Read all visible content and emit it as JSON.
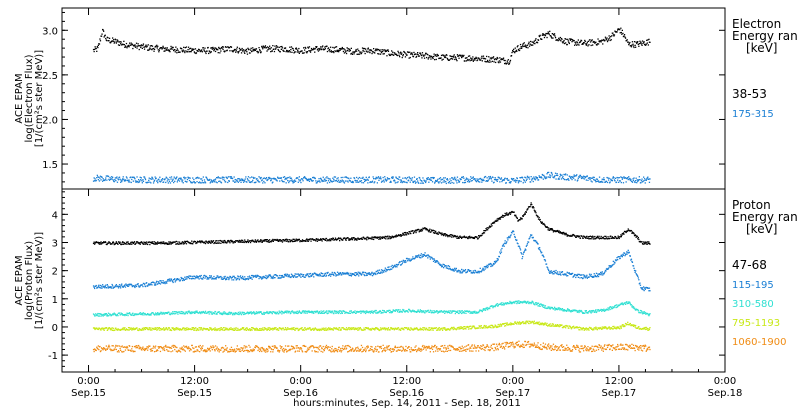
{
  "chart_data": [
    {
      "type": "scatter",
      "panel": "electron",
      "ylabel_lines": [
        "ACE EPAM",
        "log(Electron Flux)",
        "[1/(cm²s ster MeV)]"
      ],
      "ylim": [
        1.22,
        3.25
      ],
      "yticks": [
        1.5,
        2.0,
        2.5,
        3.0
      ],
      "ytick_labels": [
        "1.5",
        "2.0",
        "2.5",
        "3.0"
      ],
      "legend_title": [
        "Electron",
        "Energy ran",
        "[keV]"
      ],
      "series": [
        {
          "name": "38-53",
          "color": "#000000",
          "jitter": 0.035,
          "points": [
            [
              0.5,
              2.78
            ],
            [
              1,
              2.8
            ],
            [
              1.5,
              3.0
            ],
            [
              2,
              2.9
            ],
            [
              3,
              2.88
            ],
            [
              4,
              2.85
            ],
            [
              6,
              2.82
            ],
            [
              8,
              2.8
            ],
            [
              10,
              2.79
            ],
            [
              12,
              2.78
            ],
            [
              14,
              2.78
            ],
            [
              16,
              2.8
            ],
            [
              18,
              2.77
            ],
            [
              20,
              2.8
            ],
            [
              22,
              2.8
            ],
            [
              24,
              2.78
            ],
            [
              26,
              2.8
            ],
            [
              28,
              2.79
            ],
            [
              30,
              2.77
            ],
            [
              32,
              2.78
            ],
            [
              34,
              2.75
            ],
            [
              36,
              2.73
            ],
            [
              38,
              2.72
            ],
            [
              40,
              2.7
            ],
            [
              42,
              2.7
            ],
            [
              44,
              2.69
            ],
            [
              46,
              2.68
            ],
            [
              47.5,
              2.66
            ],
            [
              48,
              2.78
            ],
            [
              49,
              2.83
            ],
            [
              50,
              2.85
            ],
            [
              51,
              2.92
            ],
            [
              52,
              2.97
            ],
            [
              53,
              2.92
            ],
            [
              54,
              2.88
            ],
            [
              56,
              2.86
            ],
            [
              58,
              2.88
            ],
            [
              59,
              2.93
            ],
            [
              60,
              3.02
            ],
            [
              60.5,
              2.95
            ],
            [
              61,
              2.85
            ],
            [
              62,
              2.85
            ],
            [
              63.5,
              2.88
            ]
          ]
        },
        {
          "name": "175-315",
          "color": "#1a7fd4",
          "jitter": 0.035,
          "points": [
            [
              0.5,
              1.35
            ],
            [
              4,
              1.33
            ],
            [
              8,
              1.33
            ],
            [
              12,
              1.33
            ],
            [
              16,
              1.33
            ],
            [
              20,
              1.33
            ],
            [
              24,
              1.33
            ],
            [
              28,
              1.33
            ],
            [
              32,
              1.33
            ],
            [
              36,
              1.33
            ],
            [
              40,
              1.32
            ],
            [
              44,
              1.34
            ],
            [
              46,
              1.33
            ],
            [
              48,
              1.32
            ],
            [
              50,
              1.34
            ],
            [
              52,
              1.38
            ],
            [
              54,
              1.36
            ],
            [
              56,
              1.35
            ],
            [
              58,
              1.33
            ],
            [
              60,
              1.33
            ],
            [
              63.5,
              1.33
            ]
          ]
        }
      ]
    },
    {
      "type": "scatter",
      "panel": "proton",
      "ylabel_lines": [
        "ACE EPAM",
        "log(Proton Flux)",
        "[1/(cm²s ster MeV)]"
      ],
      "ylim": [
        -1.6,
        4.9
      ],
      "yticks": [
        -1,
        0,
        1,
        2,
        3,
        4
      ],
      "ytick_labels": [
        "-1",
        "0",
        "1",
        "2",
        "3",
        "4"
      ],
      "legend_title": [
        "Proton",
        "Energy ran",
        "[keV]"
      ],
      "series": [
        {
          "name": "47-68",
          "color": "#000000",
          "jitter": 0.05,
          "points": [
            [
              0.5,
              3.0
            ],
            [
              8,
              3.0
            ],
            [
              16,
              3.05
            ],
            [
              24,
              3.1
            ],
            [
              30,
              3.15
            ],
            [
              34,
              3.2
            ],
            [
              36,
              3.35
            ],
            [
              38,
              3.5
            ],
            [
              40,
              3.3
            ],
            [
              42,
              3.2
            ],
            [
              44,
              3.2
            ],
            [
              45,
              3.5
            ],
            [
              46,
              3.8
            ],
            [
              47,
              4.0
            ],
            [
              48,
              4.1
            ],
            [
              48.5,
              3.8
            ],
            [
              49,
              3.9
            ],
            [
              50,
              4.4
            ],
            [
              51,
              3.8
            ],
            [
              52,
              3.5
            ],
            [
              54,
              3.3
            ],
            [
              56,
              3.2
            ],
            [
              60,
              3.2
            ],
            [
              61,
              3.5
            ],
            [
              62,
              3.2
            ],
            [
              62.5,
              3.0
            ],
            [
              63.5,
              3.0
            ]
          ]
        },
        {
          "name": "115-195",
          "color": "#1a7fd4",
          "jitter": 0.07,
          "points": [
            [
              0.5,
              1.45
            ],
            [
              6,
              1.5
            ],
            [
              10,
              1.7
            ],
            [
              12,
              1.8
            ],
            [
              16,
              1.75
            ],
            [
              20,
              1.8
            ],
            [
              24,
              1.85
            ],
            [
              28,
              1.9
            ],
            [
              32,
              1.9
            ],
            [
              34,
              2.1
            ],
            [
              36,
              2.4
            ],
            [
              38,
              2.6
            ],
            [
              40,
              2.2
            ],
            [
              42,
              2.0
            ],
            [
              44,
              2.0
            ],
            [
              46,
              2.3
            ],
            [
              47,
              3.0
            ],
            [
              48,
              3.4
            ],
            [
              48.5,
              3.0
            ],
            [
              49,
              2.5
            ],
            [
              50,
              3.3
            ],
            [
              51,
              2.8
            ],
            [
              52,
              2.0
            ],
            [
              54,
              1.9
            ],
            [
              56,
              1.8
            ],
            [
              58,
              1.9
            ],
            [
              60,
              2.5
            ],
            [
              61,
              2.7
            ],
            [
              62,
              1.8
            ],
            [
              62.5,
              1.4
            ],
            [
              63.5,
              1.35
            ]
          ]
        },
        {
          "name": "310-580",
          "color": "#30e0d2",
          "jitter": 0.05,
          "points": [
            [
              0.5,
              0.45
            ],
            [
              8,
              0.5
            ],
            [
              12,
              0.55
            ],
            [
              16,
              0.5
            ],
            [
              24,
              0.55
            ],
            [
              32,
              0.55
            ],
            [
              36,
              0.6
            ],
            [
              40,
              0.55
            ],
            [
              44,
              0.55
            ],
            [
              46,
              0.8
            ],
            [
              48,
              0.9
            ],
            [
              50,
              0.9
            ],
            [
              52,
              0.7
            ],
            [
              56,
              0.55
            ],
            [
              58,
              0.6
            ],
            [
              60,
              0.8
            ],
            [
              61,
              0.9
            ],
            [
              62,
              0.6
            ],
            [
              63.5,
              0.45
            ]
          ]
        },
        {
          "name": "795-1193",
          "color": "#c8e817",
          "jitter": 0.05,
          "points": [
            [
              0.5,
              -0.05
            ],
            [
              8,
              -0.05
            ],
            [
              16,
              -0.05
            ],
            [
              24,
              -0.05
            ],
            [
              32,
              -0.05
            ],
            [
              40,
              -0.05
            ],
            [
              46,
              0.05
            ],
            [
              48,
              0.15
            ],
            [
              50,
              0.2
            ],
            [
              52,
              0.1
            ],
            [
              56,
              -0.05
            ],
            [
              60,
              0.0
            ],
            [
              61,
              0.15
            ],
            [
              62,
              0.0
            ],
            [
              63.5,
              -0.05
            ]
          ]
        },
        {
          "name": "1060-1900",
          "color": "#f08c14",
          "jitter": 0.12,
          "points": [
            [
              0.5,
              -0.75
            ],
            [
              8,
              -0.75
            ],
            [
              16,
              -0.75
            ],
            [
              24,
              -0.75
            ],
            [
              32,
              -0.75
            ],
            [
              40,
              -0.75
            ],
            [
              46,
              -0.7
            ],
            [
              48,
              -0.6
            ],
            [
              50,
              -0.6
            ],
            [
              52,
              -0.7
            ],
            [
              56,
              -0.75
            ],
            [
              60,
              -0.7
            ],
            [
              62,
              -0.7
            ],
            [
              63.5,
              -0.75
            ]
          ]
        }
      ]
    }
  ],
  "x_axis": {
    "xlim": [
      -3,
      72
    ],
    "ticks": [
      {
        "x": 0,
        "time": "0:00",
        "date": "Sep.15"
      },
      {
        "x": 12,
        "time": "12:00",
        "date": "Sep.15"
      },
      {
        "x": 24,
        "time": "0:00",
        "date": "Sep.16"
      },
      {
        "x": 36,
        "time": "12:00",
        "date": "Sep.16"
      },
      {
        "x": 48,
        "time": "0:00",
        "date": "Sep.17"
      },
      {
        "x": 60,
        "time": "12:00",
        "date": "Sep.17"
      },
      {
        "x": 72,
        "time": "0:00",
        "date": "Sep.18"
      }
    ],
    "xlabel": "hours:minutes, Sep. 14, 2011 - Sep. 18, 2011"
  }
}
